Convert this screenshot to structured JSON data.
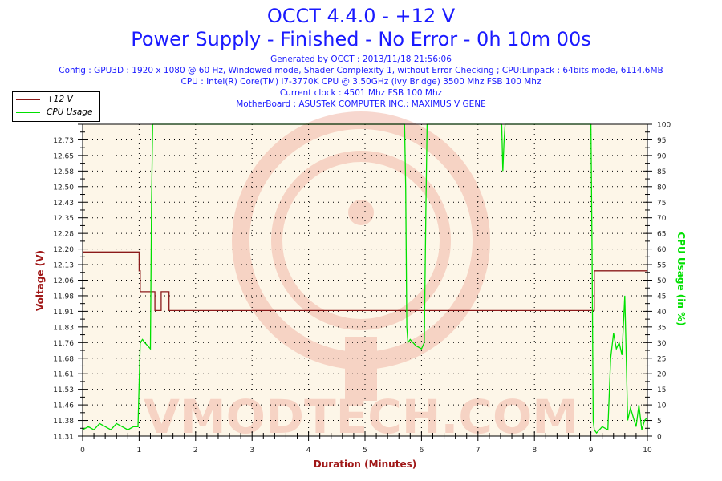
{
  "header": {
    "title": "OCCT 4.4.0 - +12 V",
    "subtitle": "Power Supply - Finished - No Error - 0h 10m 00s",
    "info_lines": [
      "Generated by OCCT : 2013/11/18 21:56:06",
      "Config : GPU3D : 1920 x 1080 @ 60 Hz, Windowed mode, Shader Complexity 1, without Error Checking ; CPU:Linpack : 64bits mode, 6114.6MB",
      "CPU : Intel(R) Core(TM) i7-3770K CPU @ 3.50GHz (Ivy Bridge) 3500 Mhz FSB 100 Mhz",
      "Current clock : 4501 Mhz FSB 100 Mhz",
      "MotherBoard : ASUSTeK COMPUTER INC.: MAXIMUS V GENE"
    ]
  },
  "legend": [
    {
      "label": "+12 V",
      "color": "#8b1a1a"
    },
    {
      "label": "CPU Usage",
      "color": "#00e000"
    }
  ],
  "watermark": "VMODTECH.COM",
  "colors": {
    "title": "#1a1aff",
    "voltage": "#8b1a1a",
    "cpu": "#00e000",
    "plot_bg": "#fdf6e8",
    "axis_title_left": "#a01818",
    "axis_title_right": "#00e000",
    "axis_title_bottom": "#a01818"
  },
  "chart_data": {
    "type": "line",
    "title": "OCCT 4.4.0 - +12 V",
    "subtitle": "Power Supply - Finished - No Error - 0h 10m 00s",
    "xlabel": "Duration (Minutes)",
    "ylabel": "Voltage (V)",
    "y2label": "CPU Usage (in %)",
    "xlim": [
      0,
      10
    ],
    "ylim": [
      11.31,
      12.8
    ],
    "y2lim": [
      0,
      100
    ],
    "x_ticks": [
      "0",
      "1",
      "2",
      "3",
      "4",
      "5",
      "6",
      "7",
      "8",
      "9",
      "10"
    ],
    "y_ticks": [
      "12.80",
      "12.73",
      "12.65",
      "12.58",
      "12.50",
      "12.43",
      "12.35",
      "12.28",
      "12.20",
      "12.13",
      "12.06",
      "11.98",
      "11.91",
      "11.83",
      "11.76",
      "11.68",
      "11.61",
      "11.53",
      "11.46",
      "11.38",
      "11.31"
    ],
    "y2_ticks": [
      "100",
      "95",
      "90",
      "85",
      "80",
      "75",
      "70",
      "65",
      "60",
      "55",
      "50",
      "45",
      "40",
      "35",
      "30",
      "25",
      "20",
      "15",
      "10",
      "5",
      "0"
    ],
    "grid": true,
    "legend_position": "top-left",
    "series": [
      {
        "name": "+12 V",
        "axis": "left",
        "step": true,
        "x": [
          0,
          0.98,
          1.0,
          1.02,
          1.28,
          1.39,
          1.53,
          9.04,
          9.06,
          10.0
        ],
        "values": [
          12.19,
          12.19,
          12.1,
          12.0,
          11.91,
          12.0,
          11.91,
          11.91,
          12.1,
          12.1
        ]
      },
      {
        "name": "CPU Usage",
        "axis": "right",
        "x": [
          0,
          0.1,
          0.2,
          0.3,
          0.4,
          0.5,
          0.6,
          0.7,
          0.8,
          0.9,
          0.98,
          1.02,
          1.06,
          1.1,
          1.15,
          1.2,
          1.22,
          1.24,
          1.26,
          1.3,
          2,
          3,
          4,
          5,
          5.7,
          5.72,
          5.74,
          5.76,
          5.8,
          5.9,
          6.0,
          6.05,
          6.08,
          6.1,
          6.15,
          7,
          7.42,
          7.44,
          7.46,
          7.48,
          7.5,
          7.55,
          8,
          9.0,
          9.02,
          9.04,
          9.06,
          9.1,
          9.2,
          9.3,
          9.35,
          9.4,
          9.45,
          9.5,
          9.55,
          9.6,
          9.62,
          9.65,
          9.7,
          9.75,
          9.8,
          9.85,
          9.9,
          9.95,
          10.0
        ],
        "values": [
          2,
          3,
          2,
          4,
          3,
          2,
          4,
          3,
          2,
          3,
          3,
          30,
          31,
          30,
          29,
          28,
          75,
          100,
          100,
          100,
          100,
          100,
          100,
          100,
          100,
          80,
          35,
          30,
          31,
          29,
          28,
          30,
          75,
          100,
          100,
          100,
          100,
          85,
          94,
          100,
          100,
          100,
          100,
          100,
          60,
          5,
          2,
          1,
          3,
          2,
          25,
          33,
          28,
          30,
          26,
          45,
          30,
          5,
          9,
          6,
          3,
          10,
          2,
          5,
          6
        ]
      }
    ]
  }
}
